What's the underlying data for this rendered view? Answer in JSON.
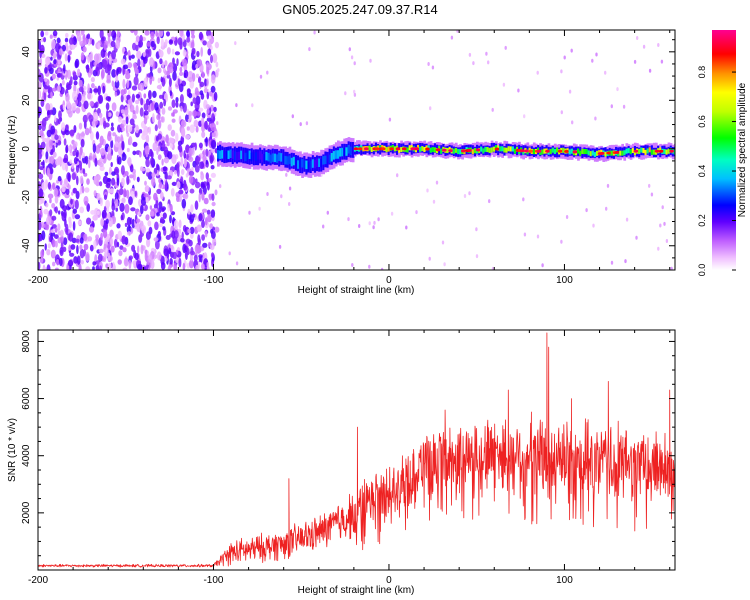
{
  "chart_data": [
    {
      "type": "heatmap",
      "title": "GN05.2025.247.09.37.R14",
      "xlabel": "Height of straight line (km)",
      "ylabel": "Frequency (Hz)",
      "xlim": [
        -200,
        163
      ],
      "ylim": [
        -50,
        49
      ],
      "x_ticks": [
        -200,
        -100,
        0,
        100
      ],
      "y_ticks": [
        -40,
        -20,
        0,
        20,
        40
      ],
      "colorbar": {
        "label": "Normalized spectral amplitude",
        "range": [
          0,
          0.97
        ],
        "ticks": [
          "0.0",
          "0.2",
          "0.4",
          "0.6",
          "0.8"
        ],
        "tick_values": [
          0.0,
          0.2,
          0.4,
          0.6,
          0.8
        ],
        "colors": [
          "#ffffff",
          "#e060ff",
          "#8000ff",
          "#0000ff",
          "#00ffff",
          "#00ff00",
          "#ffff00",
          "#ff8000",
          "#ff0000",
          "#ff00a0"
        ]
      },
      "regions": [
        {
          "description": "scattered noise",
          "x_range": [
            -200,
            -98
          ],
          "freq_range": [
            -50,
            49
          ],
          "amplitude": 0.05
        },
        {
          "description": "signal onset",
          "x_range": [
            -98,
            -20
          ],
          "center_freq": -2,
          "width_hz": 10,
          "amplitude": 0.4
        },
        {
          "description": "steady signal",
          "x_range": [
            -20,
            163
          ],
          "center_freq": 0,
          "width_hz": 6,
          "amplitude": 0.8
        }
      ],
      "ridge": {
        "x": [
          -98,
          -80,
          -60,
          -48,
          -40,
          -30,
          -20,
          0,
          20,
          40,
          60,
          80,
          100,
          120,
          140,
          163
        ],
        "freq": [
          -2,
          -3,
          -4,
          -7,
          -6,
          -2,
          0,
          0,
          0,
          -1,
          0,
          -1,
          -1,
          -2,
          -1,
          -1
        ]
      }
    },
    {
      "type": "line",
      "xlabel": "Height of straight line (km)",
      "ylabel": "SNR (10 * v/v)",
      "xlim": [
        -200,
        163
      ],
      "ylim": [
        0,
        8400
      ],
      "x_ticks": [
        -200,
        -100,
        0,
        100
      ],
      "y_ticks": [
        2000,
        4000,
        6000,
        8000
      ],
      "color": "#ee2222",
      "series": [
        {
          "name": "SNR",
          "envelope_x": [
            -200,
            -100,
            -90,
            -60,
            -40,
            -25,
            -20,
            -10,
            0,
            10,
            20,
            30,
            40,
            60,
            80,
            100,
            120,
            140,
            163
          ],
          "envelope_mean": [
            150,
            150,
            600,
            900,
            1300,
            1800,
            2000,
            2400,
            2800,
            3300,
            3700,
            3900,
            4000,
            4100,
            4000,
            3900,
            3800,
            3700,
            3600
          ],
          "envelope_spread": [
            80,
            80,
            700,
            900,
            1000,
            1300,
            1400,
            1600,
            1600,
            1800,
            1800,
            2000,
            2000,
            2200,
            2300,
            2300,
            2200,
            2200,
            2100
          ],
          "peak_points": [
            {
              "x": -100,
              "y": 150
            },
            {
              "x": -57,
              "y": 3200
            },
            {
              "x": -18,
              "y": 5000
            },
            {
              "x": 32,
              "y": 5600
            },
            {
              "x": 68,
              "y": 6300
            },
            {
              "x": 90,
              "y": 8300
            },
            {
              "x": 91,
              "y": 7800
            },
            {
              "x": 104,
              "y": 6000
            },
            {
              "x": 125,
              "y": 6600
            },
            {
              "x": 160,
              "y": 6300
            }
          ]
        }
      ]
    }
  ]
}
